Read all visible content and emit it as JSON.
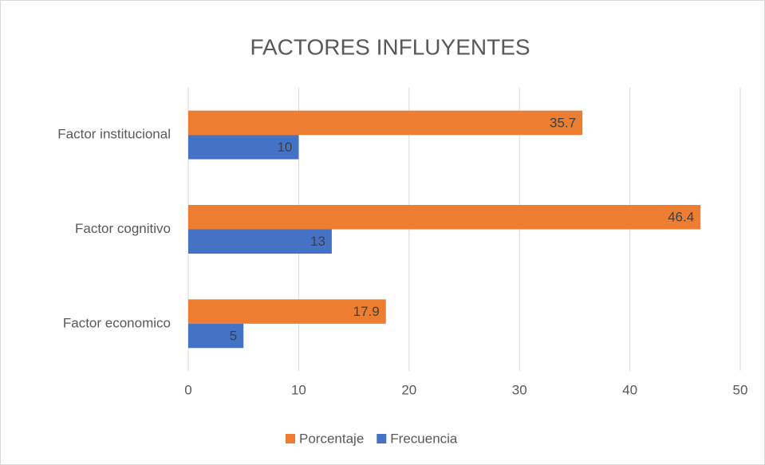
{
  "chart_data": {
    "type": "bar",
    "orientation": "horizontal",
    "title": "FACTORES INFLUYENTES",
    "categories": [
      "Factor institucional",
      "Factor cognitivo",
      "Factor economico"
    ],
    "series": [
      {
        "name": "Porcentaje",
        "color": "#ed7d31",
        "values": [
          35.7,
          46.4,
          17.9
        ]
      },
      {
        "name": "Frecuencia",
        "color": "#4472c4",
        "values": [
          10,
          13,
          5
        ]
      }
    ],
    "xlim": [
      0,
      50
    ],
    "xticks": [
      0,
      10,
      20,
      30,
      40,
      50
    ],
    "grid": true,
    "legend": "bottom"
  }
}
